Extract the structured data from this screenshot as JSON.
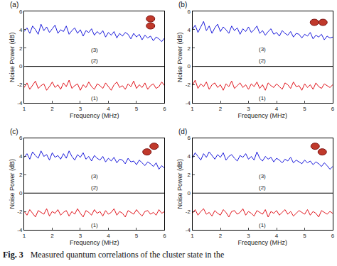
{
  "caption_label": "Fig. 3",
  "caption": "Measured quantum correlations of the cluster state in the",
  "chart_data": [
    {
      "type": "line",
      "label": "(a)",
      "xlabel": "Frequency (MHz)",
      "ylabel": "Noise Power (dB)",
      "xlim": [
        1,
        6
      ],
      "ylim": [
        -4,
        6
      ],
      "xticks": [
        1,
        2,
        3,
        4,
        5,
        6
      ],
      "yticks": [
        -4,
        -2,
        0,
        2,
        4,
        6
      ],
      "x": [
        1,
        1.1,
        1.2,
        1.3,
        1.4,
        1.5,
        1.6,
        1.7,
        1.8,
        1.9,
        2,
        2.1,
        2.2,
        2.3,
        2.4,
        2.5,
        2.6,
        2.7,
        2.8,
        2.9,
        3,
        3.1,
        3.2,
        3.3,
        3.4,
        3.5,
        3.6,
        3.7,
        3.8,
        3.9,
        4,
        4.1,
        4.2,
        4.3,
        4.4,
        4.5,
        4.6,
        4.7,
        4.8,
        4.9,
        5,
        5.1,
        5.2,
        5.3,
        5.4,
        5.5,
        5.6,
        5.7,
        5.8,
        5.9,
        6
      ],
      "series": [
        {
          "name": "(3)",
          "color": "#1a1adb",
          "values": [
            3.8,
            4.2,
            3.6,
            4.4,
            4.0,
            3.5,
            4.6,
            3.9,
            4.3,
            3.7,
            4.1,
            4.5,
            3.6,
            4.0,
            3.8,
            4.4,
            3.5,
            3.9,
            4.2,
            3.6,
            4.0,
            3.3,
            3.9,
            3.7,
            4.1,
            3.4,
            3.8,
            3.5,
            3.9,
            3.2,
            3.7,
            3.4,
            3.8,
            3.1,
            3.6,
            3.3,
            3.7,
            3.5,
            3.0,
            3.6,
            3.2,
            3.5,
            2.9,
            3.4,
            3.1,
            3.3,
            2.8,
            3.2,
            3.0,
            2.7,
            3.1
          ]
        },
        {
          "name": "(2)",
          "color": "#000000",
          "values": [
            0,
            0,
            0,
            0,
            0,
            0,
            0,
            0,
            0,
            0,
            0,
            0,
            0,
            0,
            0,
            0,
            0,
            0,
            0,
            0,
            0,
            0,
            0,
            0,
            0,
            0,
            0,
            0,
            0,
            0,
            0,
            0,
            0,
            0,
            0,
            0,
            0,
            0,
            0,
            0,
            0,
            0,
            0,
            0,
            0,
            0,
            0,
            0,
            0,
            0,
            0
          ]
        },
        {
          "name": "(1)",
          "color": "#e0141c",
          "values": [
            -2.3,
            -1.8,
            -2.5,
            -2.0,
            -1.6,
            -2.4,
            -2.1,
            -1.9,
            -2.6,
            -2.2,
            -1.7,
            -2.3,
            -2.0,
            -2.5,
            -1.8,
            -2.2,
            -1.5,
            -2.4,
            -2.1,
            -1.9,
            -2.6,
            -2.0,
            -2.3,
            -1.7,
            -2.2,
            -2.5,
            -1.9,
            -2.1,
            -2.4,
            -1.8,
            -2.2,
            -2.6,
            -2.0,
            -1.7,
            -2.3,
            -2.1,
            -2.5,
            -1.9,
            -2.2,
            -1.6,
            -2.4,
            -2.0,
            -2.3,
            -1.8,
            -2.5,
            -2.1,
            -1.9,
            -2.4,
            -2.2,
            -1.7,
            -2.1
          ]
        }
      ]
    },
    {
      "type": "line",
      "label": "(b)",
      "xlabel": "Frequency (MHz)",
      "ylabel": "Noise Power (dB)",
      "xlim": [
        1,
        6
      ],
      "ylim": [
        -4,
        6
      ],
      "xticks": [
        1,
        2,
        3,
        4,
        5,
        6
      ],
      "yticks": [
        -4,
        -2,
        0,
        2,
        4,
        6
      ],
      "x": [
        1,
        1.1,
        1.2,
        1.3,
        1.4,
        1.5,
        1.6,
        1.7,
        1.8,
        1.9,
        2,
        2.1,
        2.2,
        2.3,
        2.4,
        2.5,
        2.6,
        2.7,
        2.8,
        2.9,
        3,
        3.1,
        3.2,
        3.3,
        3.4,
        3.5,
        3.6,
        3.7,
        3.8,
        3.9,
        4,
        4.1,
        4.2,
        4.3,
        4.4,
        4.5,
        4.6,
        4.7,
        4.8,
        4.9,
        5,
        5.1,
        5.2,
        5.3,
        5.4,
        5.5,
        5.6,
        5.7,
        5.8,
        5.9,
        6
      ],
      "series": [
        {
          "name": "(3)",
          "color": "#1a1adb",
          "values": [
            4.0,
            4.5,
            3.7,
            4.3,
            4.9,
            3.9,
            4.4,
            3.6,
            4.2,
            4.6,
            3.8,
            4.3,
            4.0,
            3.6,
            4.4,
            3.9,
            4.2,
            3.5,
            4.1,
            3.8,
            4.3,
            3.7,
            4.0,
            4.4,
            3.6,
            3.9,
            3.4,
            3.8,
            4.1,
            3.5,
            3.7,
            3.3,
            3.9,
            3.6,
            3.4,
            3.8,
            3.2,
            3.6,
            3.5,
            3.1,
            3.5,
            3.3,
            3.7,
            3.0,
            3.4,
            3.2,
            3.5,
            2.9,
            3.3,
            3.1,
            3.2
          ]
        },
        {
          "name": "(2)",
          "color": "#000000",
          "values": [
            0,
            0,
            0,
            0,
            0,
            0,
            0,
            0,
            0,
            0,
            0,
            0,
            0,
            0,
            0,
            0,
            0,
            0,
            0,
            0,
            0,
            0,
            0,
            0,
            0,
            0,
            0,
            0,
            0,
            0,
            0,
            0,
            0,
            0,
            0,
            0,
            0,
            0,
            0,
            0,
            0,
            0,
            0,
            0,
            0,
            0,
            0,
            0,
            0,
            0,
            0
          ]
        },
        {
          "name": "(1)",
          "color": "#e0141c",
          "values": [
            -2.1,
            -1.5,
            -2.4,
            -1.9,
            -2.2,
            -1.7,
            -2.5,
            -2.0,
            -1.8,
            -2.3,
            -2.0,
            -2.6,
            -1.9,
            -2.2,
            -1.6,
            -2.4,
            -2.1,
            -1.8,
            -2.3,
            -2.0,
            -2.5,
            -1.9,
            -2.2,
            -1.7,
            -2.4,
            -2.0,
            -2.6,
            -1.8,
            -2.1,
            -2.3,
            -1.9,
            -2.2,
            -2.5,
            -1.8,
            -2.0,
            -2.4,
            -1.7,
            -2.2,
            -2.1,
            -2.6,
            -1.9,
            -2.3,
            -2.0,
            -2.5,
            -1.8,
            -2.2,
            -2.4,
            -1.9,
            -2.1,
            -2.3,
            -2.0
          ]
        }
      ]
    },
    {
      "type": "line",
      "label": "(c)",
      "xlabel": "Frequency (MHz)",
      "ylabel": "Noise Power (dB)",
      "xlim": [
        1,
        6
      ],
      "ylim": [
        -4,
        6
      ],
      "xticks": [
        1,
        2,
        3,
        4,
        5,
        6
      ],
      "yticks": [
        -4,
        -2,
        0,
        2,
        4,
        6
      ],
      "x": [
        1,
        1.1,
        1.2,
        1.3,
        1.4,
        1.5,
        1.6,
        1.7,
        1.8,
        1.9,
        2,
        2.1,
        2.2,
        2.3,
        2.4,
        2.5,
        2.6,
        2.7,
        2.8,
        2.9,
        3,
        3.1,
        3.2,
        3.3,
        3.4,
        3.5,
        3.6,
        3.7,
        3.8,
        3.9,
        4,
        4.1,
        4.2,
        4.3,
        4.4,
        4.5,
        4.6,
        4.7,
        4.8,
        4.9,
        5,
        5.1,
        5.2,
        5.3,
        5.4,
        5.5,
        5.6,
        5.7,
        5.8,
        5.9,
        6
      ],
      "series": [
        {
          "name": "(3)",
          "color": "#1a1adb",
          "values": [
            3.9,
            4.3,
            3.7,
            4.5,
            4.1,
            3.8,
            4.6,
            4.0,
            4.2,
            3.6,
            4.4,
            3.9,
            4.1,
            3.7,
            4.3,
            3.8,
            4.6,
            4.0,
            3.6,
            4.2,
            3.9,
            4.4,
            3.7,
            4.0,
            3.5,
            4.1,
            3.8,
            3.6,
            4.0,
            3.4,
            3.8,
            3.5,
            3.9,
            3.3,
            3.7,
            3.6,
            3.2,
            3.8,
            3.4,
            3.5,
            3.1,
            3.6,
            3.3,
            3.0,
            3.4,
            3.2,
            2.9,
            3.3,
            2.6,
            3.0,
            2.7
          ]
        },
        {
          "name": "(2)",
          "color": "#000000",
          "values": [
            0,
            0,
            0,
            0,
            0,
            0,
            0,
            0,
            0,
            0,
            0,
            0,
            0,
            0,
            0,
            0,
            0,
            0,
            0,
            0,
            0,
            0,
            0,
            0,
            0,
            0,
            0,
            0,
            0,
            0,
            0,
            0,
            0,
            0,
            0,
            0,
            0,
            0,
            0,
            0,
            0,
            0,
            0,
            0,
            0,
            0,
            0,
            0,
            0,
            0,
            0
          ]
        },
        {
          "name": "(1)",
          "color": "#e0141c",
          "values": [
            -2.0,
            -2.4,
            -1.8,
            -2.2,
            -2.6,
            -1.9,
            -2.1,
            -2.3,
            -1.7,
            -2.5,
            -2.0,
            -2.2,
            -1.8,
            -2.4,
            -2.1,
            -1.9,
            -2.5,
            -2.0,
            -2.3,
            -1.7,
            -2.2,
            -2.6,
            -1.9,
            -2.1,
            -2.4,
            -1.8,
            -2.2,
            -2.0,
            -2.5,
            -1.9,
            -2.3,
            -2.1,
            -1.7,
            -2.4,
            -2.0,
            -2.2,
            -2.6,
            -1.9,
            -2.1,
            -2.3,
            -1.8,
            -2.2,
            -2.5,
            -2.0,
            -1.9,
            -2.3,
            -2.1,
            -2.4,
            -1.8,
            -2.2,
            -2.0
          ]
        }
      ]
    },
    {
      "type": "line",
      "label": "(d)",
      "xlabel": "Frequency (MHz)",
      "ylabel": "Noise Power (dB)",
      "xlim": [
        1,
        6
      ],
      "ylim": [
        -4,
        6
      ],
      "xticks": [
        1,
        2,
        3,
        4,
        5,
        6
      ],
      "yticks": [
        -4,
        -2,
        0,
        2,
        4,
        6
      ],
      "x": [
        1,
        1.1,
        1.2,
        1.3,
        1.4,
        1.5,
        1.6,
        1.7,
        1.8,
        1.9,
        2,
        2.1,
        2.2,
        2.3,
        2.4,
        2.5,
        2.6,
        2.7,
        2.8,
        2.9,
        3,
        3.1,
        3.2,
        3.3,
        3.4,
        3.5,
        3.6,
        3.7,
        3.8,
        3.9,
        4,
        4.1,
        4.2,
        4.3,
        4.4,
        4.5,
        4.6,
        4.7,
        4.8,
        4.9,
        5,
        5.1,
        5.2,
        5.3,
        5.4,
        5.5,
        5.6,
        5.7,
        5.8,
        5.9,
        6
      ],
      "series": [
        {
          "name": "(3)",
          "color": "#1a1adb",
          "values": [
            3.8,
            4.4,
            4.0,
            3.6,
            4.3,
            3.9,
            4.5,
            4.1,
            3.7,
            4.2,
            3.9,
            4.4,
            3.6,
            4.0,
            4.2,
            3.8,
            3.5,
            4.1,
            3.9,
            4.3,
            3.7,
            4.0,
            3.6,
            4.5,
            3.8,
            3.5,
            4.0,
            3.7,
            3.9,
            3.4,
            3.8,
            3.6,
            3.3,
            3.7,
            3.5,
            3.9,
            3.3,
            3.6,
            3.4,
            3.2,
            3.6,
            3.3,
            3.5,
            3.1,
            3.4,
            3.2,
            2.9,
            3.3,
            3.0,
            2.6,
            2.9
          ]
        },
        {
          "name": "(2)",
          "color": "#000000",
          "values": [
            0,
            0,
            0,
            0,
            0,
            0,
            0,
            0,
            0,
            0,
            0,
            0,
            0,
            0,
            0,
            0,
            0,
            0,
            0,
            0,
            0,
            0,
            0,
            0,
            0,
            0,
            0,
            0,
            0,
            0,
            0,
            0,
            0,
            0,
            0,
            0,
            0,
            0,
            0,
            0,
            0,
            0,
            0,
            0,
            0,
            0,
            0,
            0,
            0,
            0,
            0
          ]
        },
        {
          "name": "(1)",
          "color": "#e0141c",
          "values": [
            -2.2,
            -1.8,
            -2.4,
            -2.0,
            -1.7,
            -2.3,
            -2.1,
            -2.5,
            -1.9,
            -2.2,
            -2.4,
            -1.8,
            -2.1,
            -2.6,
            -2.0,
            -1.9,
            -2.3,
            -2.1,
            -1.7,
            -2.4,
            -2.0,
            -2.2,
            -2.5,
            -1.9,
            -2.1,
            -2.3,
            -1.8,
            -2.6,
            -2.0,
            -2.2,
            -1.9,
            -2.4,
            -2.1,
            -1.8,
            -2.3,
            -2.0,
            -2.5,
            -2.2,
            -1.9,
            -2.1,
            -2.3,
            -1.8,
            -2.4,
            -2.0,
            -2.2,
            -2.6,
            -1.9,
            -2.1,
            -2.3,
            -2.0,
            -2.2
          ]
        }
      ]
    }
  ]
}
